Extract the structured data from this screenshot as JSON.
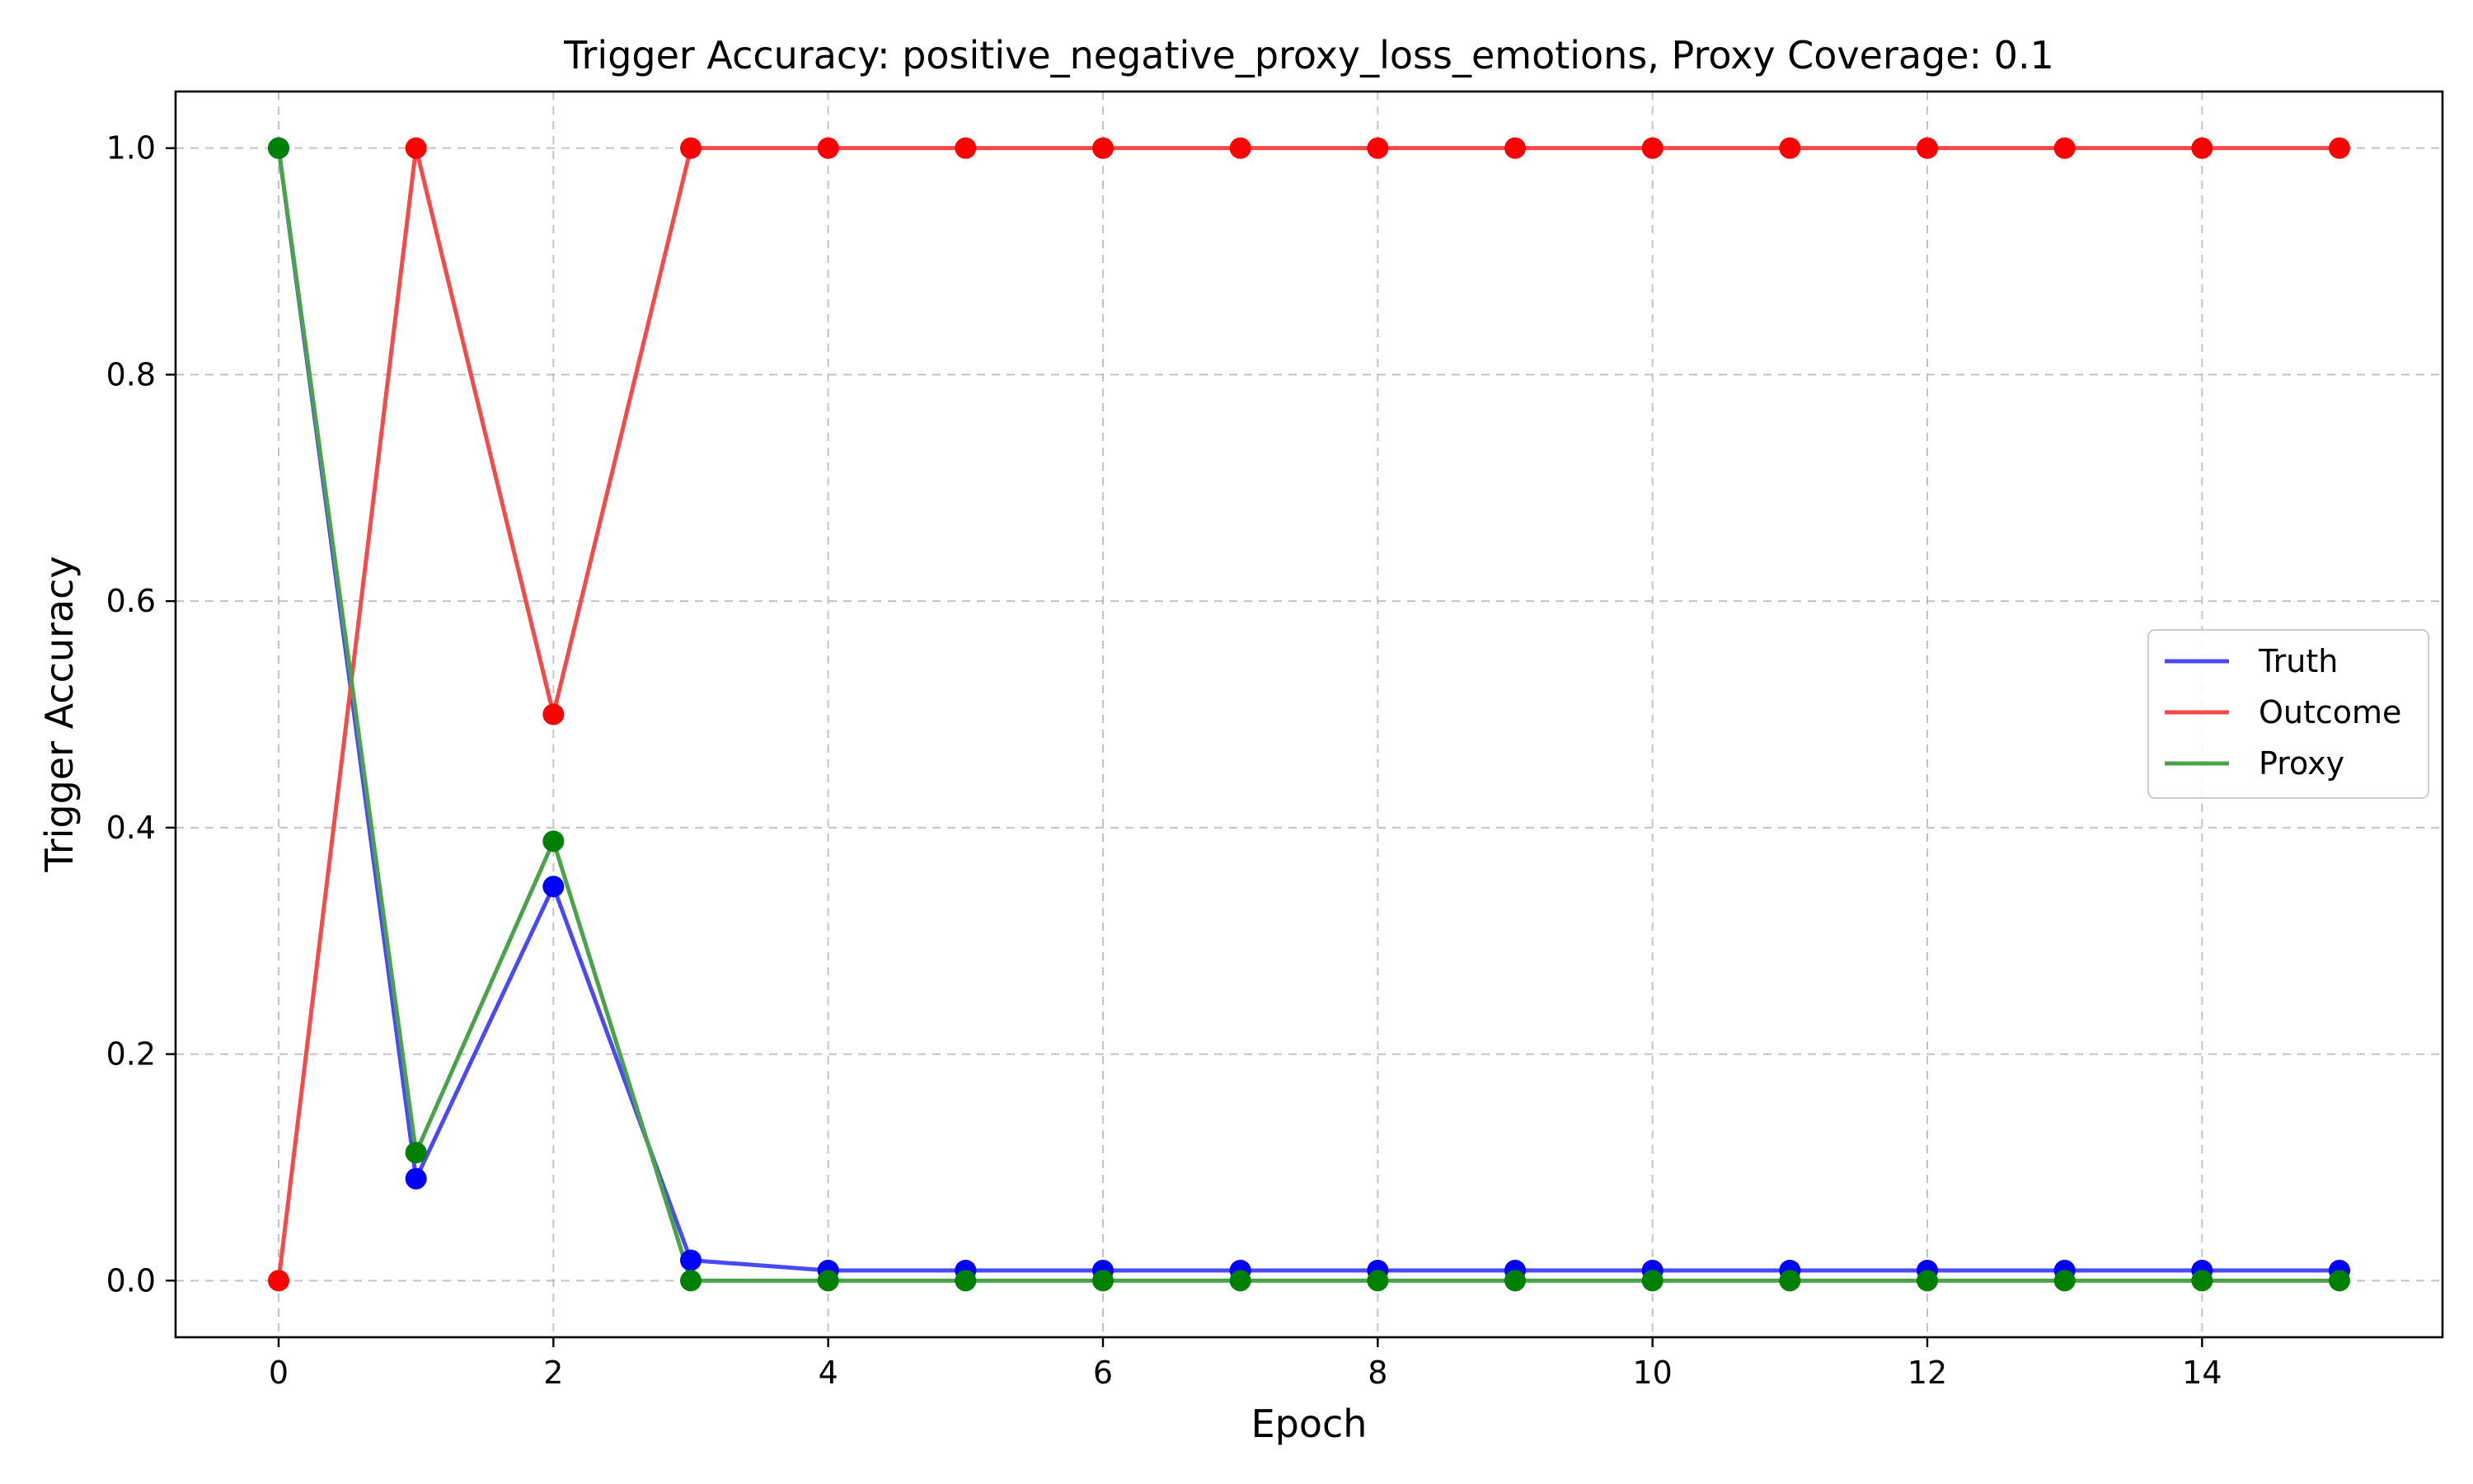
{
  "chart_data": {
    "type": "line",
    "title": "Trigger Accuracy: positive_negative_proxy_loss_emotions, Proxy Coverage: 0.1",
    "xlabel": "Epoch",
    "ylabel": "Trigger Accuracy",
    "xlim": [
      -0.75,
      15.75
    ],
    "ylim": [
      -0.05,
      1.05
    ],
    "xticks": [
      0,
      2,
      4,
      6,
      8,
      10,
      12,
      14
    ],
    "yticks": [
      0.0,
      0.2,
      0.4,
      0.6,
      0.8,
      1.0
    ],
    "xtick_labels": [
      "0",
      "2",
      "4",
      "6",
      "8",
      "10",
      "12",
      "14"
    ],
    "ytick_labels": [
      "0.0",
      "0.2",
      "0.4",
      "0.6",
      "0.8",
      "1.0"
    ],
    "grid": true,
    "legend_position": "center-right",
    "x": [
      0,
      1,
      2,
      3,
      4,
      5,
      6,
      7,
      8,
      9,
      10,
      11,
      12,
      13,
      14,
      15
    ],
    "series": [
      {
        "name": "Truth",
        "line_color": "#4a4af4",
        "marker_color": "#0000ff",
        "values": [
          1.0,
          0.09,
          0.348,
          0.018,
          0.009,
          0.009,
          0.009,
          0.009,
          0.009,
          0.009,
          0.009,
          0.009,
          0.009,
          0.009,
          0.009,
          0.009
        ]
      },
      {
        "name": "Outcome",
        "line_color": "#f44a4a",
        "marker_color": "#ff0000",
        "values": [
          0.0,
          1.0,
          0.5,
          1.0,
          1.0,
          1.0,
          1.0,
          1.0,
          1.0,
          1.0,
          1.0,
          1.0,
          1.0,
          1.0,
          1.0,
          1.0
        ]
      },
      {
        "name": "Proxy",
        "line_color": "#4aa24a",
        "marker_color": "#008000",
        "values": [
          1.0,
          0.113,
          0.388,
          0.0,
          0.0,
          0.0,
          0.0,
          0.0,
          0.0,
          0.0,
          0.0,
          0.0,
          0.0,
          0.0,
          0.0,
          0.0
        ]
      }
    ]
  }
}
